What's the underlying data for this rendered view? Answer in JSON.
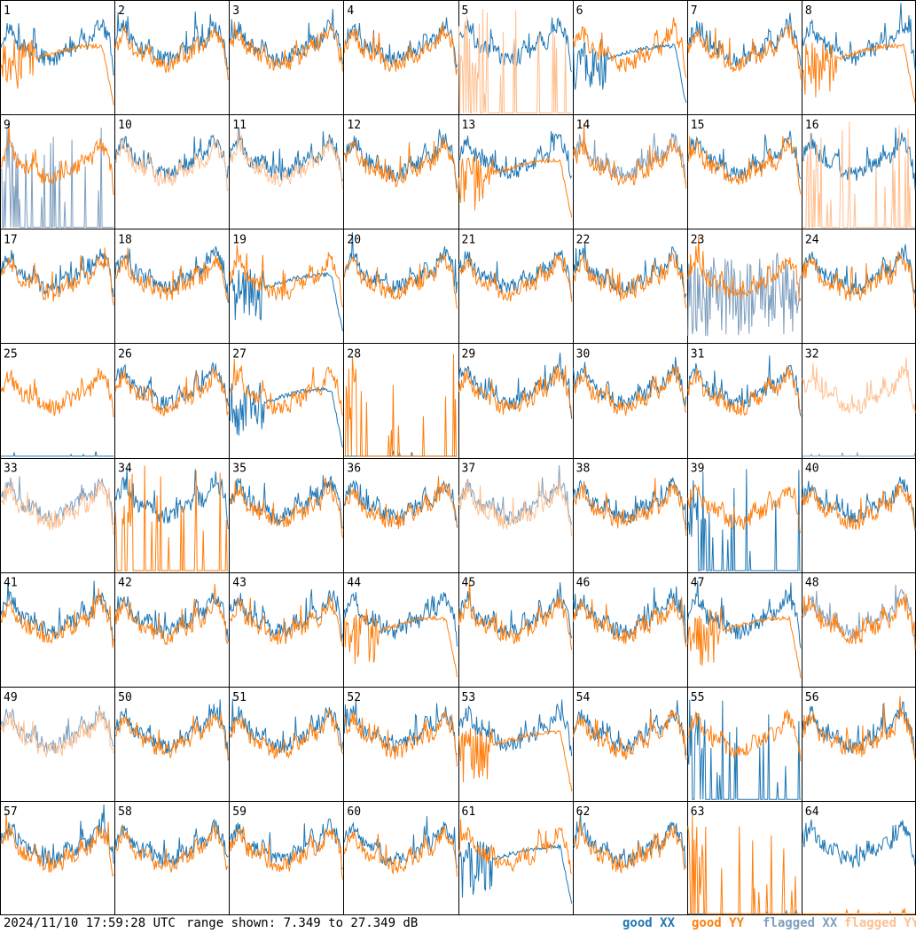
{
  "chart_data": {
    "type": "line",
    "layout": "8x8 small multiples",
    "tile_labels": [
      "1",
      "2",
      "3",
      "4",
      "5",
      "6",
      "7",
      "8",
      "9",
      "10",
      "11",
      "12",
      "13",
      "14",
      "15",
      "16",
      "17",
      "18",
      "19",
      "20",
      "21",
      "22",
      "23",
      "24",
      "25",
      "26",
      "27",
      "28",
      "29",
      "30",
      "31",
      "32",
      "33",
      "34",
      "35",
      "36",
      "37",
      "38",
      "39",
      "40",
      "41",
      "42",
      "43",
      "44",
      "45",
      "46",
      "47",
      "48",
      "49",
      "50",
      "51",
      "52",
      "53",
      "54",
      "55",
      "56",
      "57",
      "58",
      "59",
      "60",
      "61",
      "62",
      "63",
      "64"
    ],
    "range_min_db": 7.349,
    "range_max_db": 27.349,
    "series": [
      {
        "name": "good XX",
        "color": "#1f77b4"
      },
      {
        "name": "good YY",
        "color": "#ff7f0e"
      },
      {
        "name": "flagged XX",
        "color": "#7f9fbf"
      },
      {
        "name": "flagged YY",
        "color": "#ffbf8f"
      }
    ],
    "tiles": {
      "1": {
        "xx": "good",
        "yy": "curve"
      },
      "5": {
        "xx": "good",
        "yy": "flagged_spiky_low"
      },
      "6": {
        "xx": "curve",
        "yy": "good"
      },
      "8": {
        "xx": "good",
        "yy": "curve"
      },
      "9": {
        "xx": "flagged_spiky_low",
        "yy": "good"
      },
      "10": {
        "xx": "good",
        "yy": "flagged"
      },
      "11": {
        "xx": "good",
        "yy": "flagged"
      },
      "13": {
        "xx": "good",
        "yy": "curve"
      },
      "14": {
        "xx": "flagged",
        "yy": "good"
      },
      "16": {
        "xx": "good",
        "yy": "flagged_spiky_low"
      },
      "19": {
        "xx": "curve",
        "yy": "good"
      },
      "23": {
        "xx": "flagged_noisy",
        "yy": "good"
      },
      "25": {
        "xx": "flat_low",
        "yy": "good"
      },
      "27": {
        "xx": "curve",
        "yy": "good"
      },
      "28": {
        "xx": "dead",
        "yy": "spiky_low"
      },
      "32": {
        "xx": "flagged_flat_low",
        "yy": "flagged"
      },
      "33": {
        "xx": "flagged",
        "yy": "flagged"
      },
      "34": {
        "xx": "good",
        "yy": "spiky_low"
      },
      "37": {
        "xx": "flagged",
        "yy": "flagged"
      },
      "39": {
        "xx": "spiky_low",
        "yy": "good"
      },
      "44": {
        "xx": "good",
        "yy": "curve"
      },
      "47": {
        "xx": "good",
        "yy": "curve"
      },
      "48": {
        "xx": "flagged",
        "yy": "good"
      },
      "49": {
        "xx": "flagged",
        "yy": "flagged"
      },
      "53": {
        "xx": "good",
        "yy": "curve"
      },
      "55": {
        "xx": "spiky_low",
        "yy": "good"
      },
      "61": {
        "xx": "curve",
        "yy": "good"
      },
      "63": {
        "xx": "dead",
        "yy": "spiky_low"
      },
      "64": {
        "xx": "good",
        "yy": "dead"
      }
    }
  },
  "footer": {
    "timestamp": "2024/11/10 17:59:28 UTC",
    "range_text": "range shown: 7.349 to 27.349 dB",
    "legend_good_xx": "good XX",
    "legend_good_yy": "good YY",
    "legend_flagged_xx": "flagged XX",
    "legend_flagged_yy": "flagged YY"
  },
  "colors": {
    "good_xx": "#1f77b4",
    "good_yy": "#ff7f0e",
    "flagged_xx": "#7f9fbf",
    "flagged_yy": "#ffbf8f",
    "grid": "#000000"
  }
}
